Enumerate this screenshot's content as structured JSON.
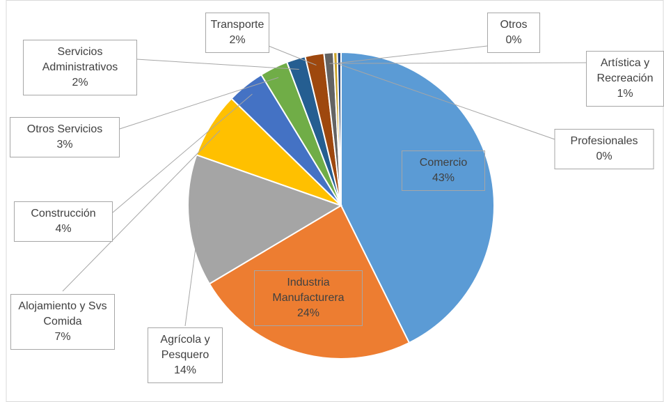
{
  "chart_data": {
    "type": "pie",
    "categories": [
      "Comercio",
      "Industria Manufacturera",
      "Agrícola y Pesquero",
      "Alojamiento y Svs Comida",
      "Construcción",
      "Otros Servicios",
      "Servicios Administrativos",
      "Transporte",
      "Artística y Recreación",
      "Profesionales",
      "Otros"
    ],
    "values": [
      43,
      24,
      14,
      7,
      4,
      3,
      2,
      2,
      1,
      0.4,
      0.4
    ],
    "value_labels": [
      "43%",
      "24%",
      "14%",
      "7%",
      "4%",
      "3%",
      "2%",
      "2%",
      "1%",
      "0%",
      "0%"
    ],
    "colors": [
      "#5b9bd5",
      "#ed7d31",
      "#a5a5a5",
      "#ffc000",
      "#4472c4",
      "#70ad47",
      "#255e91",
      "#9e480e",
      "#636363",
      "#c9a227",
      "#264478"
    ]
  }
}
